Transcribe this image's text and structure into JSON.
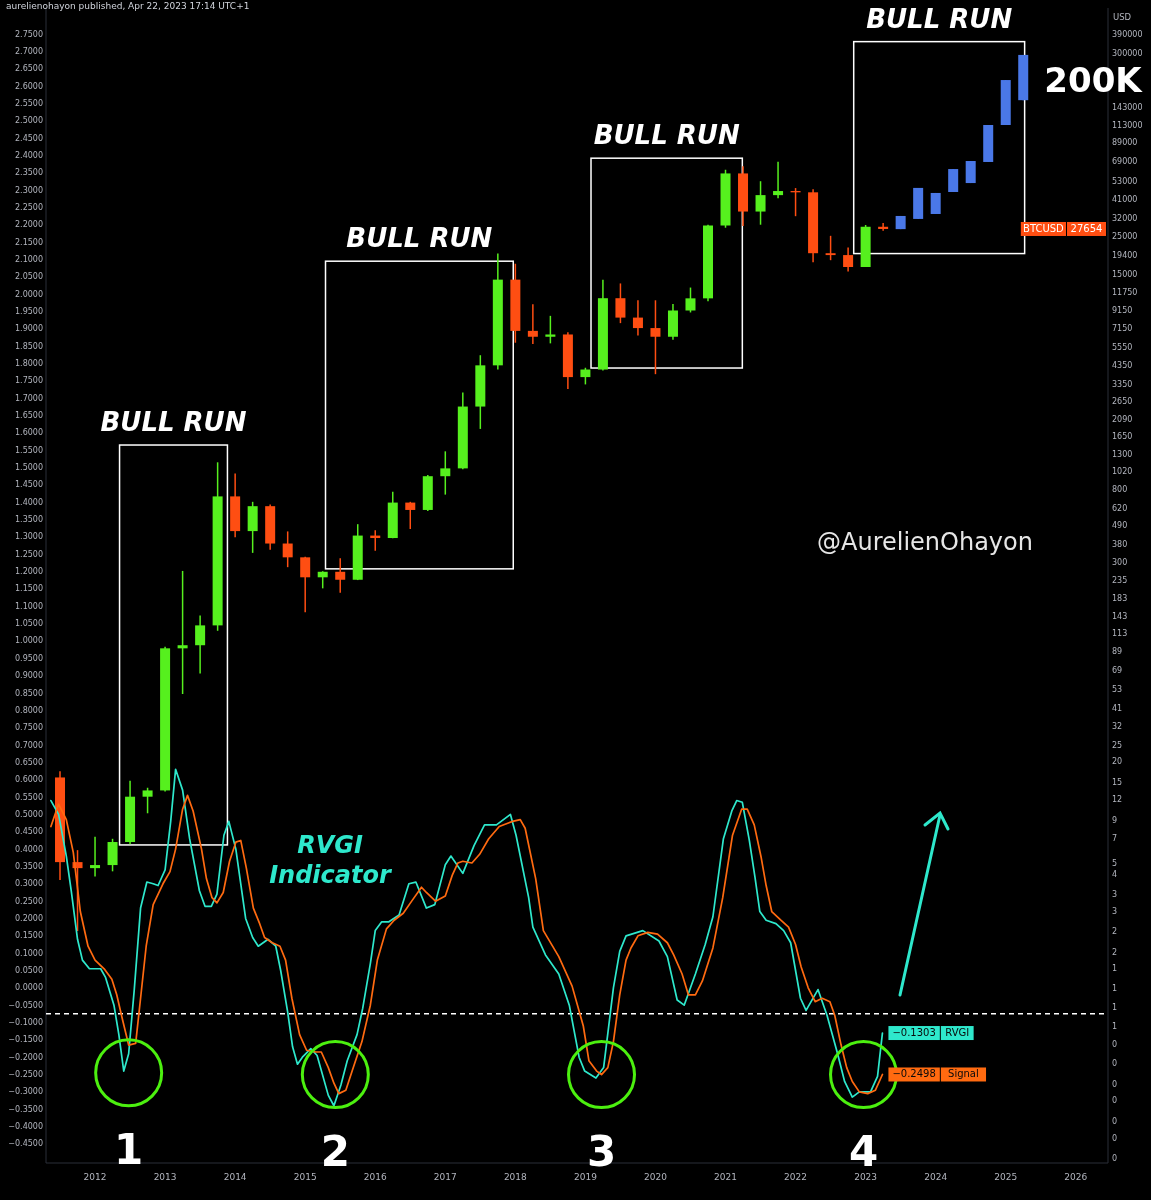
{
  "chart_data": {
    "type": "candlestick",
    "title": "aurelienohayon published, Apr 22, 2023 17:14 UTC+1",
    "y2label": "USD",
    "xlim": [
      2011.3,
      2026.46
    ],
    "xticks": [
      2012,
      2013,
      2014,
      2015,
      2016,
      2017,
      2018,
      2019,
      2020,
      2021,
      2022,
      2023,
      2024,
      2025,
      2026
    ],
    "ylim": [
      -0.505,
      2.825
    ],
    "yticks": [
      {
        "value": -0.45,
        "label": "−0.4500"
      },
      {
        "value": -0.4,
        "label": "−0.4000"
      },
      {
        "value": -0.35,
        "label": "−0.3500"
      },
      {
        "value": -0.3,
        "label": "−0.3000"
      },
      {
        "value": -0.25,
        "label": "−0.2500"
      },
      {
        "value": -0.2,
        "label": "−0.2000"
      },
      {
        "value": -0.15,
        "label": "−0.1500"
      },
      {
        "value": -0.1,
        "label": "−0.1000"
      },
      {
        "value": -0.05,
        "label": "−0.0500"
      },
      {
        "value": 0,
        "label": "0.0000"
      },
      {
        "value": 0.05,
        "label": "0.0500"
      },
      {
        "value": 0.1,
        "label": "0.1000"
      },
      {
        "value": 0.15,
        "label": "0.1500"
      },
      {
        "value": 0.2,
        "label": "0.2000"
      },
      {
        "value": 0.25,
        "label": "0.2500"
      },
      {
        "value": 0.3,
        "label": "0.3000"
      },
      {
        "value": 0.35,
        "label": "0.3500"
      },
      {
        "value": 0.4,
        "label": "0.4000"
      },
      {
        "value": 0.45,
        "label": "0.4500"
      },
      {
        "value": 0.5,
        "label": "0.5000"
      },
      {
        "value": 0.55,
        "label": "0.5500"
      },
      {
        "value": 0.6,
        "label": "0.6000"
      },
      {
        "value": 0.65,
        "label": "0.6500"
      },
      {
        "value": 0.7,
        "label": "0.7000"
      },
      {
        "value": 0.75,
        "label": "0.7500"
      },
      {
        "value": 0.8,
        "label": "0.8000"
      },
      {
        "value": 0.85,
        "label": "0.8500"
      },
      {
        "value": 0.9,
        "label": "0.9000"
      },
      {
        "value": 0.95,
        "label": "0.9500"
      },
      {
        "value": 1,
        "label": "1.0000"
      },
      {
        "value": 1.05,
        "label": "1.0500"
      },
      {
        "value": 1.1,
        "label": "1.1000"
      },
      {
        "value": 1.15,
        "label": "1.1500"
      },
      {
        "value": 1.2,
        "label": "1.2000"
      },
      {
        "value": 1.25,
        "label": "1.2500"
      },
      {
        "value": 1.3,
        "label": "1.3000"
      },
      {
        "value": 1.35,
        "label": "1.3500"
      },
      {
        "value": 1.4,
        "label": "1.4000"
      },
      {
        "value": 1.45,
        "label": "1.4500"
      },
      {
        "value": 1.5,
        "label": "1.5000"
      },
      {
        "value": 1.55,
        "label": "1.5500"
      },
      {
        "value": 1.6,
        "label": "1.6000"
      },
      {
        "value": 1.65,
        "label": "1.6500"
      },
      {
        "value": 1.7,
        "label": "1.7000"
      },
      {
        "value": 1.75,
        "label": "1.7500"
      },
      {
        "value": 1.8,
        "label": "1.8000"
      },
      {
        "value": 1.85,
        "label": "1.8500"
      },
      {
        "value": 1.9,
        "label": "1.9000"
      },
      {
        "value": 1.95,
        "label": "1.9500"
      },
      {
        "value": 2,
        "label": "2.0000"
      },
      {
        "value": 2.05,
        "label": "2.0500"
      },
      {
        "value": 2.1,
        "label": "2.1000"
      },
      {
        "value": 2.15,
        "label": "2.1500"
      },
      {
        "value": 2.2,
        "label": "2.2000"
      },
      {
        "value": 2.25,
        "label": "2.2500"
      },
      {
        "value": 2.3,
        "label": "2.3000"
      },
      {
        "value": 2.35,
        "label": "2.3500"
      },
      {
        "value": 2.4,
        "label": "2.4000"
      },
      {
        "value": 2.45,
        "label": "2.4500"
      },
      {
        "value": 2.5,
        "label": "2.5000"
      },
      {
        "value": 2.55,
        "label": "2.5500"
      },
      {
        "value": 2.6,
        "label": "2.6000"
      },
      {
        "value": 2.65,
        "label": "2.6500"
      },
      {
        "value": 2.7,
        "label": "2.7000"
      },
      {
        "value": 2.75,
        "label": "2.7500"
      }
    ],
    "log": "y2",
    "y2lim": [
      0.0857,
      556000
    ],
    "y2ticks": [
      390000,
      300000,
      143000,
      113000,
      89000,
      69000,
      53000,
      41000,
      32000,
      25000,
      19400,
      15000,
      11750,
      9150,
      7150,
      5550,
      4350,
      3350,
      2650,
      2090,
      1650,
      1300,
      1020,
      800,
      620,
      490,
      380,
      300,
      235,
      183,
      143,
      113,
      89,
      69,
      53,
      41,
      32,
      25,
      20,
      15,
      12,
      9,
      7,
      5,
      {
        "value": 4.3,
        "label": "4"
      },
      {
        "value": 3.3,
        "label": "3"
      },
      {
        "value": 2.6,
        "label": "3"
      },
      2,
      {
        "value": 1.5,
        "label": "2"
      },
      {
        "value": 1.2,
        "label": "1"
      },
      {
        "value": 0.92,
        "label": "1"
      },
      {
        "value": 0.71,
        "label": "1"
      },
      {
        "value": 0.55,
        "label": "1"
      },
      {
        "value": 0.43,
        "label": "0"
      },
      {
        "value": 0.33,
        "label": "0"
      },
      {
        "value": 0.25,
        "label": "0"
      },
      {
        "value": 0.2,
        "label": "0"
      },
      {
        "value": 0.15,
        "label": "0"
      },
      {
        "value": 0.12,
        "label": "0"
      },
      {
        "value": 0.091,
        "label": "0"
      }
    ],
    "ref_lines": [
      {
        "axis": "y",
        "value": -0.075,
        "color": "#ffffff",
        "line_style": "dashed"
      }
    ],
    "series": [
      {
        "type": "line",
        "name": "RVGI",
        "color": "#2ee8cc",
        "x": [
          2011.37,
          2011.48,
          2011.59,
          2011.66,
          2011.75,
          2011.82,
          2011.92,
          2012.08,
          2012.15,
          2012.27,
          2012.34,
          2012.41,
          2012.48,
          2012.56,
          2012.65,
          2012.74,
          2012.83,
          2012.9,
          2013.0,
          2013.08,
          2013.15,
          2013.25,
          2013.35,
          2013.49,
          2013.57,
          2013.66,
          2013.74,
          2013.84,
          2013.91,
          2014.01,
          2014.15,
          2014.25,
          2014.33,
          2014.47,
          2014.58,
          2014.65,
          2014.75,
          2014.82,
          2014.89,
          2014.96,
          2015.08,
          2015.17,
          2015.33,
          2015.41,
          2015.51,
          2015.6,
          2015.74,
          2015.82,
          2015.93,
          2016.0,
          2016.09,
          2016.19,
          2016.34,
          2016.48,
          2016.58,
          2016.73,
          2016.85,
          2017.0,
          2017.08,
          2017.25,
          2017.41,
          2017.56,
          2017.73,
          2017.93,
          2018.01,
          2018.19,
          2018.25,
          2018.43,
          2018.62,
          2018.77,
          2018.91,
          2018.99,
          2019.15,
          2019.26,
          2019.4,
          2019.49,
          2019.58,
          2019.82,
          2020.05,
          2020.17,
          2020.31,
          2020.41,
          2020.57,
          2020.71,
          2020.82,
          2020.97,
          2021.09,
          2021.16,
          2021.24,
          2021.34,
          2021.42,
          2021.49,
          2021.58,
          2021.72,
          2021.83,
          2021.93,
          2022.07,
          2022.15,
          2022.32,
          2022.45,
          2022.6,
          2022.7,
          2022.81,
          2022.91,
          2023.07,
          2023.17,
          2023.24
        ],
        "values": [
          0.54,
          0.5,
          0.38,
          0.28,
          0.14,
          0.08,
          0.055,
          0.055,
          0.03,
          -0.05,
          -0.135,
          -0.24,
          -0.19,
          -0.005,
          0.23,
          0.305,
          0.3,
          0.295,
          0.34,
          0.48,
          0.63,
          0.57,
          0.43,
          0.28,
          0.235,
          0.235,
          0.27,
          0.44,
          0.48,
          0.4,
          0.2,
          0.145,
          0.12,
          0.14,
          0.12,
          0.05,
          -0.07,
          -0.17,
          -0.22,
          -0.2,
          -0.175,
          -0.195,
          -0.31,
          -0.34,
          -0.28,
          -0.21,
          -0.135,
          -0.06,
          0.07,
          0.165,
          0.19,
          0.19,
          0.21,
          0.3,
          0.305,
          0.23,
          0.24,
          0.355,
          0.38,
          0.33,
          0.41,
          0.47,
          0.47,
          0.5,
          0.44,
          0.26,
          0.175,
          0.095,
          0.04,
          -0.05,
          -0.2,
          -0.24,
          -0.26,
          -0.23,
          0,
          0.105,
          0.15,
          0.165,
          0.135,
          0.09,
          -0.035,
          -0.05,
          0.04,
          0.125,
          0.205,
          0.43,
          0.51,
          0.54,
          0.535,
          0.425,
          0.32,
          0.22,
          0.195,
          0.185,
          0.165,
          0.13,
          -0.03,
          -0.065,
          -0.005,
          -0.08,
          -0.19,
          -0.27,
          -0.315,
          -0.3,
          -0.3,
          -0.255,
          -0.1303
        ],
        "value_labels": [
          null,
          null,
          null,
          null,
          null,
          null,
          null,
          null,
          null,
          null,
          null,
          null,
          null,
          null,
          null,
          null,
          null,
          null,
          null,
          null,
          null,
          null,
          null,
          null,
          null,
          null,
          null,
          null,
          null,
          null,
          null,
          null,
          null,
          null,
          null,
          null,
          null,
          null,
          null,
          null,
          null,
          null,
          null,
          null,
          null,
          null,
          null,
          null,
          null,
          null,
          null,
          null,
          null,
          null,
          null,
          null,
          null,
          null,
          null,
          null,
          null,
          null,
          null,
          null,
          null,
          null,
          null,
          null,
          null,
          null,
          null,
          null,
          null,
          null,
          null,
          null,
          null,
          null,
          null,
          null,
          null,
          null,
          null,
          null,
          null,
          null,
          null,
          null,
          null,
          null,
          null,
          null,
          null,
          null,
          null,
          null,
          null,
          null,
          null,
          null,
          null,
          null,
          null,
          null,
          null,
          null,
          "−0.1303"
        ]
      },
      {
        "type": "line",
        "name": "Signal",
        "color": "#ff6a10",
        "x": [
          2011.37,
          2011.48,
          2011.59,
          2011.69,
          2011.79,
          2011.9,
          2012.0,
          2012.13,
          2012.24,
          2012.31,
          2012.39,
          2012.48,
          2012.58,
          2012.65,
          2012.73,
          2012.83,
          2012.97,
          2013.07,
          2013.15,
          2013.25,
          2013.32,
          2013.4,
          2013.52,
          2013.59,
          2013.67,
          2013.74,
          2013.83,
          2013.92,
          2014.01,
          2014.08,
          2014.16,
          2014.26,
          2014.35,
          2014.42,
          2014.53,
          2014.64,
          2014.72,
          2014.81,
          2014.92,
          2015.02,
          2015.15,
          2015.23,
          2015.33,
          2015.41,
          2015.48,
          2015.58,
          2015.67,
          2015.81,
          2015.93,
          2016.03,
          2016.16,
          2016.27,
          2016.4,
          2016.52,
          2016.66,
          2016.73,
          2016.86,
          2017.0,
          2017.1,
          2017.18,
          2017.25,
          2017.38,
          2017.49,
          2017.62,
          2017.77,
          2017.96,
          2018.07,
          2018.14,
          2018.29,
          2018.4,
          2018.62,
          2018.81,
          2018.97,
          2019.05,
          2019.16,
          2019.23,
          2019.32,
          2019.4,
          2019.49,
          2019.58,
          2019.65,
          2019.75,
          2019.89,
          2020.03,
          2020.17,
          2020.26,
          2020.38,
          2020.47,
          2020.57,
          2020.67,
          2020.82,
          2020.96,
          2021.1,
          2021.23,
          2021.31,
          2021.41,
          2021.51,
          2021.58,
          2021.66,
          2021.79,
          2021.9,
          2022.0,
          2022.08,
          2022.18,
          2022.28,
          2022.38,
          2022.49,
          2022.56,
          2022.65,
          2022.73,
          2022.81,
          2022.91,
          2023.03,
          2023.14,
          2023.24
        ],
        "values": [
          0.465,
          0.53,
          0.485,
          0.39,
          0.22,
          0.12,
          0.08,
          0.055,
          0.025,
          -0.02,
          -0.09,
          -0.165,
          -0.16,
          -0.03,
          0.12,
          0.24,
          0.3,
          0.335,
          0.4,
          0.515,
          0.555,
          0.51,
          0.4,
          0.315,
          0.26,
          0.245,
          0.275,
          0.365,
          0.42,
          0.425,
          0.345,
          0.23,
          0.185,
          0.145,
          0.13,
          0.12,
          0.08,
          -0.03,
          -0.135,
          -0.18,
          -0.185,
          -0.185,
          -0.23,
          -0.275,
          -0.305,
          -0.295,
          -0.24,
          -0.155,
          -0.05,
          0.08,
          0.17,
          0.195,
          0.215,
          0.25,
          0.29,
          0.275,
          0.25,
          0.265,
          0.325,
          0.36,
          0.365,
          0.36,
          0.385,
          0.43,
          0.465,
          0.48,
          0.485,
          0.46,
          0.315,
          0.165,
          0.09,
          0.005,
          -0.11,
          -0.21,
          -0.24,
          -0.25,
          -0.23,
          -0.155,
          -0.02,
          0.08,
          0.115,
          0.15,
          0.16,
          0.155,
          0.13,
          0.095,
          0.04,
          -0.02,
          -0.02,
          0.02,
          0.115,
          0.26,
          0.44,
          0.515,
          0.515,
          0.47,
          0.375,
          0.295,
          0.22,
          0.195,
          0.175,
          0.125,
          0.06,
          0,
          -0.04,
          -0.03,
          -0.04,
          -0.08,
          -0.165,
          -0.23,
          -0.27,
          -0.3,
          -0.305,
          -0.295,
          -0.2498
        ],
        "value_labels": [
          null,
          null,
          null,
          null,
          null,
          null,
          null,
          null,
          null,
          null,
          null,
          null,
          null,
          null,
          null,
          null,
          null,
          null,
          null,
          null,
          null,
          null,
          null,
          null,
          null,
          null,
          null,
          null,
          null,
          null,
          null,
          null,
          null,
          null,
          null,
          null,
          null,
          null,
          null,
          null,
          null,
          null,
          null,
          null,
          null,
          null,
          null,
          null,
          null,
          null,
          null,
          null,
          null,
          null,
          null,
          null,
          null,
          null,
          null,
          null,
          null,
          null,
          null,
          null,
          null,
          null,
          null,
          null,
          null,
          null,
          null,
          null,
          null,
          null,
          null,
          null,
          null,
          null,
          null,
          null,
          null,
          null,
          null,
          null,
          null,
          null,
          null,
          null,
          null,
          null,
          null,
          null,
          null,
          null,
          null,
          null,
          null,
          null,
          null,
          null,
          null,
          null,
          null,
          null,
          null,
          null,
          null,
          null,
          null,
          null,
          null,
          null,
          null,
          null,
          "−0.2498"
        ]
      },
      {
        "name": "BTCUSD",
        "axis": "y2",
        "color": "#56f01e",
        "x": [
          2011.5,
          2011.75,
          2012.0,
          2012.25,
          2012.5,
          2012.75,
          2013.0,
          2013.25,
          2013.5,
          2013.75,
          2014.0,
          2014.25,
          2014.5,
          2014.75,
          2015.0,
          2015.25,
          2015.5,
          2015.75,
          2016.0,
          2016.25,
          2016.5,
          2016.75,
          2017.0,
          2017.25,
          2017.5,
          2017.75,
          2018.0,
          2018.25,
          2018.5,
          2018.75,
          2019.0,
          2019.25,
          2019.5,
          2019.75,
          2020.0,
          2020.25,
          2020.5,
          2020.75,
          2021.0,
          2021.25,
          2021.5,
          2021.75,
          2022.0,
          2022.25,
          2022.5,
          2022.75,
          2023.0,
          2023.25
        ],
        "ohlc": [
          [
            16.1,
            17.5,
            4,
            5.1
          ],
          [
            5.1,
            6,
            2,
            4.7
          ],
          [
            4.7,
            7.2,
            4.2,
            4.9
          ],
          [
            4.9,
            7,
            4.5,
            6.7
          ],
          [
            6.7,
            15.4,
            6.5,
            12.4
          ],
          [
            12.4,
            14,
            9.9,
            13.5
          ],
          [
            13.5,
            95,
            13.3,
            93
          ],
          [
            93,
            266,
            50,
            97
          ],
          [
            97,
            145,
            66,
            127
          ],
          [
            127,
            1163,
            118,
            732
          ],
          [
            732,
            1000,
            420,
            457
          ],
          [
            457,
            680,
            340,
            641
          ],
          [
            641,
            655,
            355,
            386
          ],
          [
            386,
            455,
            280,
            320
          ],
          [
            320,
            322,
            152,
            244
          ],
          [
            244,
            265,
            210,
            263
          ],
          [
            263,
            316,
            198,
            236
          ],
          [
            236,
            502,
            235,
            430
          ],
          [
            430,
            463,
            350,
            416
          ],
          [
            416,
            780,
            415,
            673
          ],
          [
            673,
            680,
            470,
            609
          ],
          [
            609,
            980,
            600,
            963
          ],
          [
            963,
            1350,
            750,
            1071
          ],
          [
            1071,
            3000,
            1060,
            2480
          ],
          [
            2480,
            4980,
            1830,
            4340
          ],
          [
            4340,
            19800,
            4100,
            13900
          ],
          [
            13900,
            17250,
            5900,
            6930
          ],
          [
            6930,
            9950,
            5800,
            6400
          ],
          [
            6400,
            8500,
            5850,
            6600
          ],
          [
            6600,
            6800,
            3150,
            3700
          ],
          [
            3700,
            4200,
            3350,
            4100
          ],
          [
            4100,
            13900,
            4050,
            10800
          ],
          [
            10800,
            13200,
            7700,
            8300
          ],
          [
            8300,
            10500,
            6500,
            7200
          ],
          [
            7200,
            10500,
            3850,
            6400
          ],
          [
            6400,
            10000,
            6150,
            9140
          ],
          [
            9140,
            12480,
            8900,
            10780
          ],
          [
            10780,
            29300,
            10370,
            28990
          ],
          [
            28990,
            61800,
            28130,
            58800
          ],
          [
            58800,
            64900,
            28800,
            35040
          ],
          [
            35040,
            52900,
            29300,
            43800
          ],
          [
            43800,
            69000,
            42000,
            46300
          ],
          [
            46300,
            48200,
            32900,
            45500
          ],
          [
            45500,
            47400,
            17600,
            19900
          ],
          [
            19900,
            25200,
            18100,
            19400
          ],
          [
            19400,
            21500,
            15500,
            16500
          ],
          [
            16500,
            29200,
            16500,
            28500
          ],
          [
            28500,
            30000,
            27000,
            27654
          ]
        ],
        "colors": [
          "#ff4e12",
          "#ff4e12",
          "#56f01e",
          "#56f01e",
          "#56f01e",
          "#56f01e",
          "#56f01e",
          "#56f01e",
          "#56f01e",
          "#56f01e",
          "#ff4e12",
          "#56f01e",
          "#ff4e12",
          "#ff4e12",
          "#ff4e12",
          "#56f01e",
          "#ff4e12",
          "#56f01e",
          "#ff4e12",
          "#56f01e",
          "#ff4e12",
          "#56f01e",
          "#56f01e",
          "#56f01e",
          "#56f01e",
          "#56f01e",
          "#ff4e12",
          "#ff4e12",
          "#56f01e",
          "#ff4e12",
          "#56f01e",
          "#56f01e",
          "#ff4e12",
          "#ff4e12",
          "#ff4e12",
          "#56f01e",
          "#56f01e",
          "#56f01e",
          "#56f01e",
          "#ff4e12",
          "#56f01e",
          "#56f01e",
          "#ff4e12",
          "#ff4e12",
          "#ff4e12",
          "#ff4e12",
          "#56f01e",
          "#ff4e12"
        ],
        "value_labels": [
          null,
          null,
          null,
          null,
          null,
          null,
          null,
          null,
          null,
          null,
          null,
          null,
          null,
          null,
          null,
          null,
          null,
          null,
          null,
          null,
          null,
          null,
          null,
          null,
          null,
          null,
          null,
          null,
          null,
          null,
          null,
          null,
          null,
          null,
          null,
          null,
          null,
          null,
          null,
          null,
          null,
          null,
          null,
          null,
          null,
          null,
          null,
          "27654"
        ]
      },
      {
        "axis": "y2",
        "color": "#4a78e8",
        "x": [
          2023.5,
          2023.75,
          2024.0,
          2024.25,
          2024.5,
          2024.75,
          2025.0,
          2025.25
        ],
        "ohlc": [
          [
            27600,
            33000,
            27600,
            33000
          ],
          [
            31700,
            48300,
            31700,
            48300
          ],
          [
            33900,
            45100,
            33900,
            45100
          ],
          [
            45700,
            62400,
            45700,
            62400
          ],
          [
            51600,
            69600,
            51600,
            69600
          ],
          [
            68700,
            113500,
            68700,
            113500
          ],
          [
            113500,
            209000,
            113500,
            209000
          ],
          [
            159000,
            294000,
            159000,
            294000
          ]
        ]
      }
    ],
    "annotations": [
      "BULL RUN",
      "BULL RUN",
      "BULL RUN",
      "BULL RUN",
      "1",
      "2",
      "3",
      "4",
      "200K",
      "RVGI",
      "Indicator",
      "@AurelienOhayon"
    ]
  }
}
